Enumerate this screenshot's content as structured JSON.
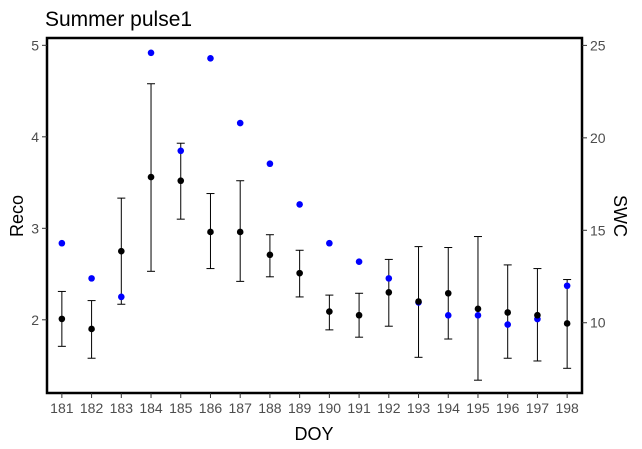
{
  "chart_data": {
    "type": "scatter",
    "title": "Summer pulse1",
    "xlabel": "DOY",
    "ylabel": "Reco",
    "y2label": "SWC",
    "categories": [
      "181",
      "182",
      "183",
      "184",
      "185",
      "186",
      "187",
      "188",
      "189",
      "190",
      "191",
      "192",
      "193",
      "194",
      "195",
      "196",
      "197",
      "198"
    ],
    "ylim": [
      1.2,
      5.08
    ],
    "yticks": [
      2,
      3,
      4,
      5
    ],
    "y2lim": [
      6.2,
      25.4
    ],
    "y2ticks": [
      10,
      15,
      20,
      25
    ],
    "grid": false,
    "colors": {
      "reco": "#000000",
      "swc": "#0000ff"
    },
    "series": [
      {
        "axis": "left",
        "color": "#000000",
        "values": [
          2.01,
          1.9,
          2.75,
          3.56,
          3.52,
          2.96,
          2.96,
          2.71,
          2.51,
          2.09,
          2.05,
          2.3,
          2.2,
          2.29,
          2.12,
          2.08,
          2.05,
          1.96
        ],
        "error_low": [
          1.71,
          1.58,
          2.17,
          2.53,
          3.1,
          2.56,
          2.42,
          2.47,
          2.25,
          1.89,
          1.81,
          1.93,
          1.59,
          1.79,
          1.34,
          1.58,
          1.55,
          1.47
        ],
        "error_high": [
          2.31,
          2.21,
          3.33,
          4.58,
          3.93,
          3.38,
          3.52,
          2.93,
          2.76,
          2.27,
          2.29,
          2.66,
          2.8,
          2.79,
          2.91,
          2.6,
          2.56,
          2.44
        ]
      },
      {
        "axis": "right",
        "color": "#0000ff",
        "values": [
          14.3,
          12.4,
          11.4,
          24.6,
          19.3,
          24.3,
          20.8,
          18.6,
          16.4,
          14.3,
          13.3,
          12.4,
          11.1,
          10.4,
          10.4,
          9.9,
          10.2,
          12.0
        ]
      }
    ]
  }
}
